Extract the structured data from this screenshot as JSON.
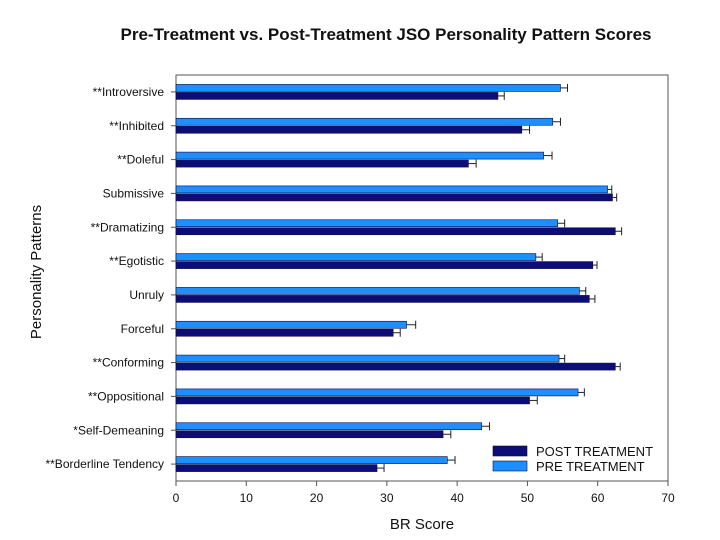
{
  "chart_data": {
    "type": "bar",
    "orientation": "horizontal",
    "title": "Pre-Treatment vs. Post-Treatment JSO Personality Pattern Scores",
    "xlabel": "BR Score",
    "ylabel": "Personality Patterns",
    "xlim": [
      0,
      70
    ],
    "xticks": [
      0,
      10,
      20,
      30,
      40,
      50,
      60,
      70
    ],
    "grid": false,
    "legend_position": "bottom-right",
    "categories": [
      "**Introversive",
      "**Inhibited",
      "**Doleful",
      "Submissive",
      "**Dramatizing",
      "**Egotistic",
      "Unruly",
      "Forceful",
      "**Conforming",
      "**Oppositional",
      "*Self-Demeaning",
      "**Borderline Tendency"
    ],
    "series": [
      {
        "name": "PRE TREATMENT",
        "color": "#1e8fff",
        "values": [
          54.7,
          53.6,
          52.3,
          61.4,
          54.3,
          51.2,
          57.4,
          32.8,
          54.5,
          57.2,
          43.5,
          38.6
        ],
        "errors": [
          1.0,
          1.1,
          1.2,
          0.6,
          1.0,
          0.9,
          0.9,
          1.3,
          0.8,
          0.9,
          1.1,
          1.1
        ]
      },
      {
        "name": "POST TREATMENT",
        "color": "#0d0d78",
        "values": [
          45.8,
          49.2,
          41.6,
          62.1,
          62.5,
          59.3,
          58.8,
          30.9,
          62.5,
          50.3,
          38.0,
          28.6
        ],
        "errors": [
          0.9,
          1.1,
          1.1,
          0.6,
          0.9,
          0.6,
          0.8,
          1.0,
          0.7,
          1.1,
          1.1,
          1.0
        ]
      }
    ]
  }
}
